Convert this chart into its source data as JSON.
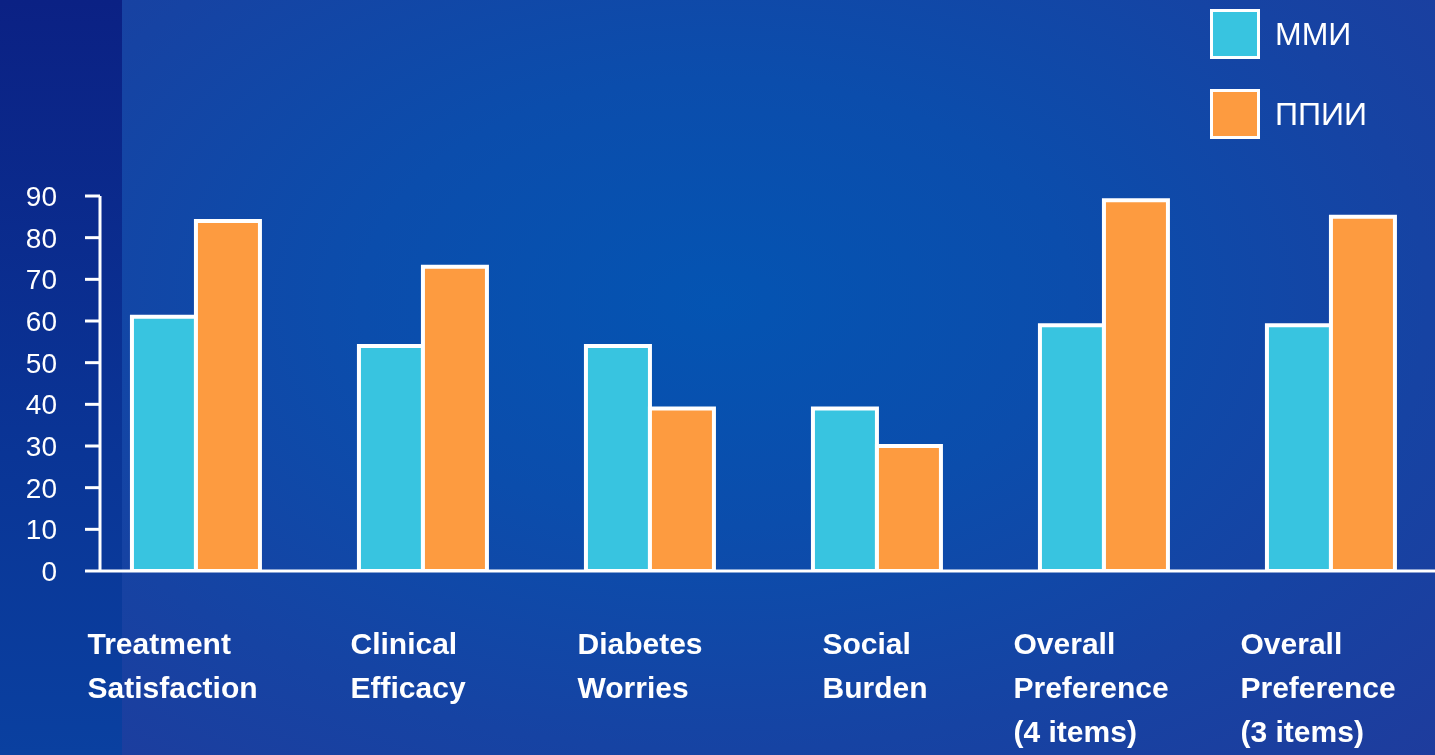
{
  "chart_data": {
    "type": "bar",
    "categories": [
      "Treatment Satisfaction",
      "Clinical Efficacy",
      "Diabetes Worries",
      "Social Burden",
      "Overall Preference (4 items)",
      "Overall Preference (3 items)"
    ],
    "series": [
      {
        "name": "ММИ",
        "color": "#38c4e0",
        "values": [
          61,
          54,
          54,
          39,
          59,
          59
        ]
      },
      {
        "name": "ППИИ",
        "color": "#fd9b40",
        "values": [
          84,
          73,
          39,
          30,
          89,
          85
        ]
      }
    ],
    "ylim": [
      0,
      90
    ],
    "yticks": [
      0,
      10,
      20,
      30,
      40,
      50,
      60,
      70,
      80,
      90
    ],
    "legend": "top right"
  }
}
